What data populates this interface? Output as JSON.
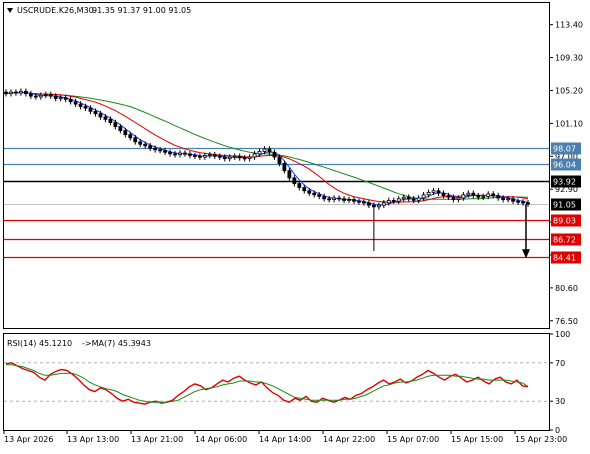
{
  "header": {
    "symbol": "USCRUDE.K26,M30",
    "ohlc": "91.35 91.37 91.00 91.05"
  },
  "rsi_header": {
    "label": "RSI(14) 45.1210",
    "ma_label": "->MA(7) 45.3943"
  },
  "colors": {
    "price": "#000000",
    "ma_fast": "#1f3fff",
    "ma_mid": "#e00000",
    "ma_slow": "#1a8a1a",
    "level_blue": "#4a7fb0",
    "level_red": "#e00000",
    "level_black": "#000000",
    "rsi": "#e00000",
    "rsi_ma": "#1a8a1a"
  },
  "chart_data": [
    {
      "type": "candlestick",
      "title": "USCRUDE.K26,M30",
      "y_ticks": [
        "113.40",
        "109.30",
        "105.20",
        "101.10",
        "97.00",
        "92.90",
        "88.80",
        "84.70",
        "80.60",
        "76.50"
      ],
      "y_tick_values": [
        113.4,
        109.3,
        105.2,
        101.1,
        97.0,
        92.9,
        88.8,
        84.7,
        80.6,
        76.5
      ],
      "ylim": [
        75.6,
        116.1
      ],
      "x_ticks": [
        "13 Apr 2026",
        "13 Apr 13:00",
        "13 Apr 21:00",
        "14 Apr 06:00",
        "14 Apr 14:00",
        "14 Apr 22:00",
        "15 Apr 07:00",
        "15 Apr 15:00",
        "15 Apr 23:00"
      ],
      "levels": [
        {
          "label": "98.07",
          "value": 98.07,
          "style": "blue"
        },
        {
          "label": "96.04",
          "value": 96.04,
          "style": "blue"
        },
        {
          "label": "93.92",
          "value": 93.92,
          "style": "black"
        },
        {
          "label": "89.03",
          "value": 89.03,
          "style": "red"
        },
        {
          "label": "86.72",
          "value": 86.72,
          "style": "red"
        },
        {
          "label": "84.41",
          "value": 84.41,
          "style": "red"
        }
      ],
      "current_price": {
        "label": "91.05",
        "value": 91.05
      },
      "close_series": [
        104.8,
        105.0,
        104.9,
        105.1,
        104.8,
        104.5,
        104.4,
        104.6,
        104.7,
        104.5,
        104.2,
        104.3,
        104.1,
        103.8,
        103.5,
        103.2,
        103.0,
        102.6,
        102.3,
        101.9,
        101.6,
        101.2,
        100.7,
        100.2,
        99.7,
        99.3,
        98.8,
        98.5,
        98.3,
        98.0,
        97.8,
        97.7,
        97.5,
        97.3,
        97.2,
        97.4,
        97.3,
        97.1,
        97.0,
        96.9,
        97.1,
        97.2,
        97.0,
        96.9,
        96.7,
        96.9,
        97.0,
        96.8,
        96.7,
        96.9,
        97.3,
        97.6,
        97.9,
        97.5,
        96.9,
        96.1,
        95.2,
        94.3,
        93.6,
        93.1,
        92.7,
        92.4,
        92.2,
        92.0,
        91.7,
        91.6,
        91.8,
        91.7,
        91.5,
        91.6,
        91.4,
        91.3,
        91.2,
        90.9,
        90.7,
        90.9,
        91.2,
        91.5,
        91.4,
        91.7,
        91.9,
        91.7,
        91.5,
        91.8,
        92.2,
        92.5,
        92.7,
        92.4,
        92.1,
        91.9,
        91.6,
        91.8,
        92.2,
        92.4,
        92.1,
        91.9,
        92.0,
        92.3,
        92.1,
        91.8,
        91.6,
        91.7,
        91.4,
        91.3,
        91.2,
        91.05
      ],
      "spike_low": {
        "index": 74,
        "value": 85.2
      }
    },
    {
      "type": "line",
      "title": "RSI(14) 45.1210",
      "y_ticks": [
        "100",
        "70",
        "30",
        "0"
      ],
      "y_tick_values": [
        100,
        70,
        30,
        0
      ],
      "ylim": [
        0,
        100
      ],
      "series": [
        {
          "name": "RSI(14) 45.1210",
          "values": [
            69,
            70,
            67,
            64,
            62,
            60,
            55,
            52,
            58,
            61,
            63,
            62,
            58,
            53,
            47,
            42,
            40,
            44,
            42,
            38,
            33,
            30,
            32,
            29,
            28,
            27,
            29,
            30,
            28,
            29,
            31,
            36,
            40,
            45,
            48,
            46,
            42,
            44,
            48,
            52,
            50,
            54,
            56,
            52,
            49,
            47,
            50,
            44,
            39,
            36,
            31,
            29,
            33,
            31,
            35,
            30,
            29,
            33,
            31,
            29,
            31,
            34,
            32,
            36,
            38,
            42,
            45,
            49,
            52,
            48,
            50,
            53,
            49,
            51,
            55,
            58,
            62,
            59,
            55,
            52,
            56,
            58,
            54,
            50,
            52,
            55,
            51,
            48,
            53,
            55,
            50,
            48,
            52,
            46,
            45
          ]
        },
        {
          "name": "->MA(7) 45.3943",
          "values": [
            68,
            68,
            67,
            66,
            64,
            62,
            59,
            57,
            57,
            58,
            59,
            59,
            59,
            57,
            54,
            50,
            47,
            45,
            43,
            42,
            40,
            37,
            35,
            33,
            31,
            30,
            29,
            29,
            29,
            29,
            30,
            31,
            34,
            37,
            40,
            42,
            43,
            44,
            45,
            47,
            48,
            49,
            51,
            51,
            51,
            50,
            50,
            48,
            46,
            43,
            40,
            37,
            34,
            33,
            32,
            31,
            31,
            31,
            31,
            31,
            31,
            32,
            32,
            33,
            35,
            37,
            40,
            43,
            46,
            47,
            49,
            50,
            50,
            51,
            52,
            54,
            56,
            57,
            57,
            57,
            57,
            56,
            56,
            55,
            54,
            53,
            53,
            52,
            52,
            52,
            52,
            51,
            50,
            49,
            45.4
          ]
        }
      ]
    }
  ]
}
